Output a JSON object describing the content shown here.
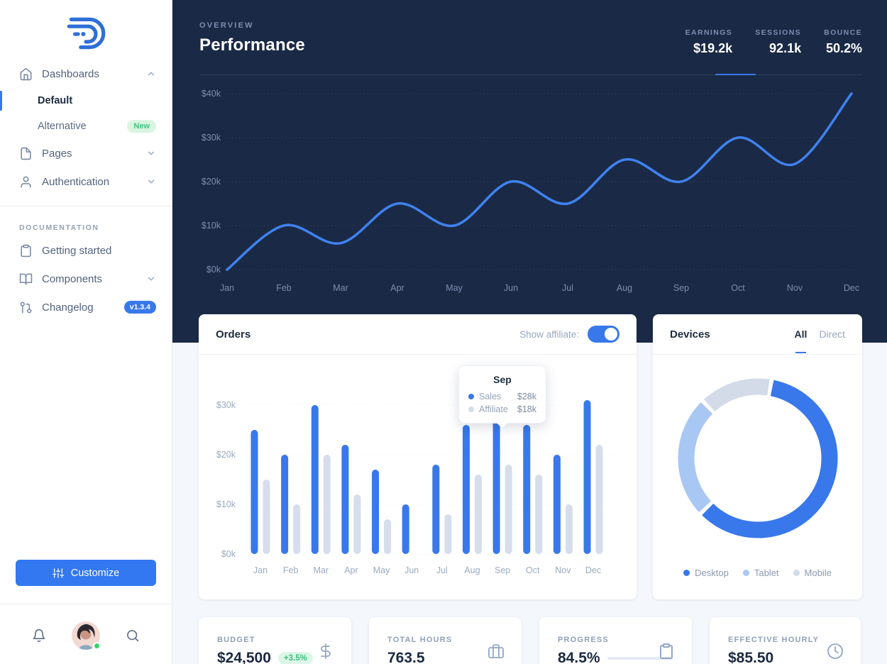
{
  "colors": {
    "primary": "#3878ea",
    "navy": "#1a2945",
    "sales_bar": "#3878ea",
    "affiliate_bar": "#d6ddeb",
    "desktop": "#3878ea",
    "tablet": "#a9c7f3",
    "mobile": "#d3dbe8",
    "green": "#3dbd7d"
  },
  "sidebar": {
    "items": [
      {
        "label": "Dashboards",
        "expanded": true,
        "children": [
          {
            "label": "Default",
            "active": true
          },
          {
            "label": "Alternative",
            "badge": "New"
          }
        ]
      },
      {
        "label": "Pages"
      },
      {
        "label": "Authentication"
      }
    ],
    "section_label": "DOCUMENTATION",
    "doc_items": [
      {
        "label": "Getting started"
      },
      {
        "label": "Components"
      },
      {
        "label": "Changelog",
        "badge": "v1.3.4"
      }
    ],
    "customize_label": "Customize"
  },
  "hero": {
    "eyebrow": "OVERVIEW",
    "title": "Performance",
    "stats": [
      {
        "label": "EARNINGS",
        "value": "$19.2k",
        "active": true
      },
      {
        "label": "SESSIONS",
        "value": "92.1k"
      },
      {
        "label": "BOUNCE",
        "value": "50.2%"
      }
    ]
  },
  "orders": {
    "title": "Orders",
    "toggle_label": "Show affiliate:",
    "toggle_on": true,
    "tooltip": {
      "title": "Sep",
      "rows": [
        {
          "name": "Sales",
          "value": "$28k"
        },
        {
          "name": "Affiliate",
          "value": "$18k"
        }
      ]
    }
  },
  "devices": {
    "title": "Devices",
    "tabs": [
      {
        "label": "All",
        "active": true
      },
      {
        "label": "Direct"
      }
    ]
  },
  "stat_cards": [
    {
      "label": "BUDGET",
      "value": "$24,500",
      "badge": "+3.5%",
      "icon": "dollar-icon"
    },
    {
      "label": "TOTAL HOURS",
      "value": "763.5",
      "icon": "briefcase-icon"
    },
    {
      "label": "PROGRESS",
      "value": "84.5%",
      "progress": 84.5,
      "icon": "clipboard-icon"
    },
    {
      "label": "EFFECTIVE HOURLY",
      "value": "$85.50",
      "icon": "clock-icon"
    }
  ],
  "chart_data": [
    {
      "id": "performance",
      "type": "line",
      "title": "Performance (Earnings)",
      "x": [
        "Jan",
        "Feb",
        "Mar",
        "Apr",
        "May",
        "Jun",
        "Jul",
        "Aug",
        "Sep",
        "Oct",
        "Nov",
        "Dec"
      ],
      "series": [
        {
          "name": "Earnings",
          "values": [
            0,
            10,
            6,
            15,
            10,
            20,
            15,
            25,
            20,
            30,
            24,
            40
          ],
          "color": "#3f82ef"
        }
      ],
      "unit": "$k",
      "ylim": [
        0,
        40
      ],
      "yticks": [
        0,
        10,
        20,
        30,
        40
      ],
      "grid": "dotted-horizontal"
    },
    {
      "id": "orders",
      "type": "bar",
      "categories": [
        "Jan",
        "Feb",
        "Mar",
        "Apr",
        "May",
        "Jun",
        "Jul",
        "Aug",
        "Sep",
        "Oct",
        "Nov",
        "Dec"
      ],
      "series": [
        {
          "name": "Sales",
          "values": [
            25,
            20,
            30,
            22,
            17,
            10,
            18,
            26,
            28,
            26,
            20,
            31
          ],
          "color": "#3878ea"
        },
        {
          "name": "Affiliate",
          "values": [
            15,
            10,
            20,
            12,
            7,
            0,
            8,
            16,
            18,
            16,
            10,
            22
          ],
          "color": "#d6ddeb"
        }
      ],
      "unit": "$k",
      "ylim": [
        0,
        30
      ],
      "yticks": [
        0,
        10,
        20,
        30
      ],
      "grid": "dotted-horizontal"
    },
    {
      "id": "devices",
      "type": "pie",
      "subtype": "donut",
      "segments": [
        {
          "name": "Desktop",
          "value": 60,
          "color": "#3878ea"
        },
        {
          "name": "Tablet",
          "value": 25,
          "color": "#a9c7f3"
        },
        {
          "name": "Mobile",
          "value": 15,
          "color": "#d3dbe8"
        }
      ],
      "legend_position": "bottom"
    }
  ]
}
